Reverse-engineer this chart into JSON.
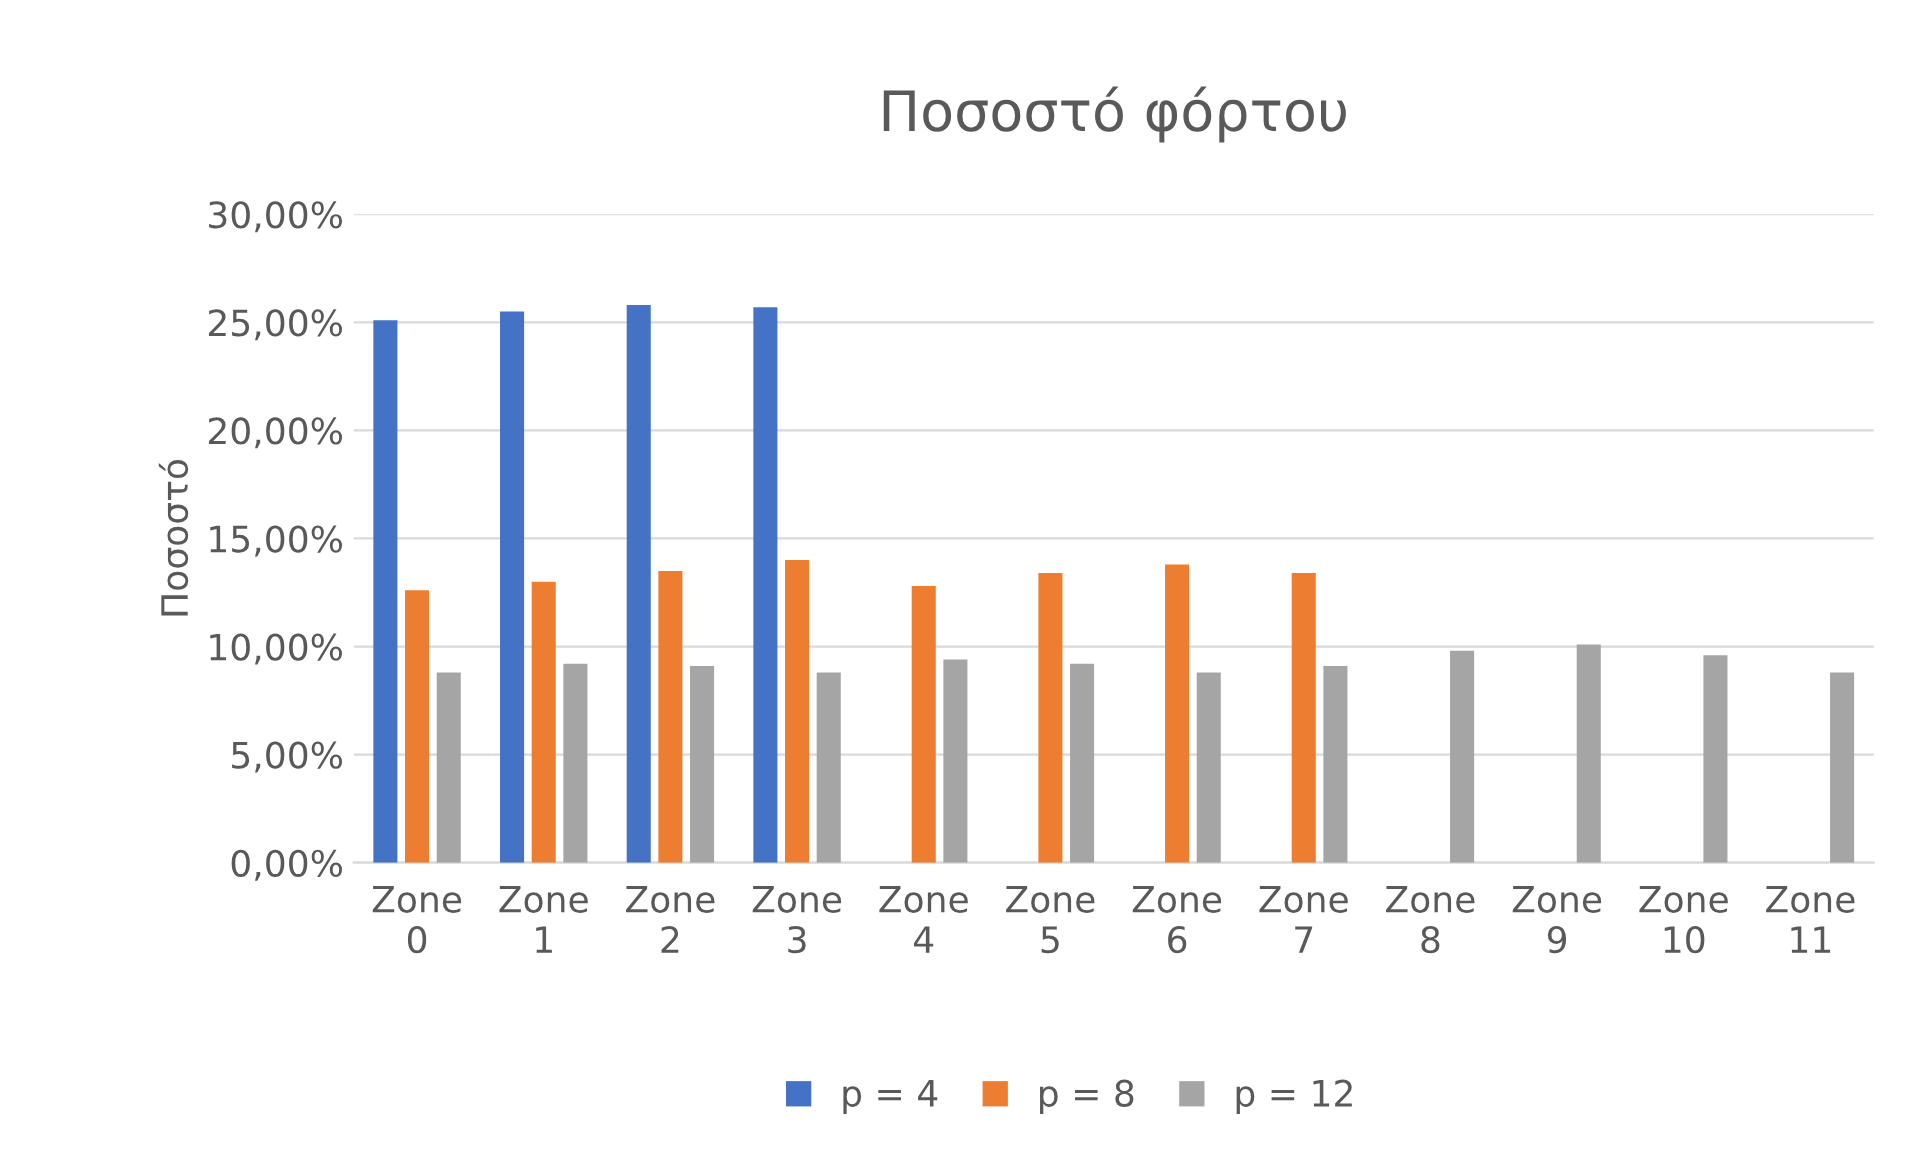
{
  "chart_data": {
    "type": "bar",
    "title": "Ποσοστό φόρτου",
    "ylabel": "Ποσοστό",
    "categories": [
      "Zone 0",
      "Zone 1",
      "Zone 2",
      "Zone 3",
      "Zone 4",
      "Zone 5",
      "Zone 6",
      "Zone 7",
      "Zone 8",
      "Zone 9",
      "Zone 10",
      "Zone 11"
    ],
    "series": [
      {
        "name": "p = 4",
        "color": "#4472c4",
        "values": [
          25.1,
          25.5,
          25.8,
          25.7,
          null,
          null,
          null,
          null,
          null,
          null,
          null,
          null
        ]
      },
      {
        "name": "p = 8",
        "color": "#ed7d31",
        "values": [
          12.6,
          13.0,
          13.5,
          14.0,
          12.8,
          13.4,
          13.8,
          13.4,
          null,
          null,
          null,
          null
        ]
      },
      {
        "name": "p = 12",
        "color": "#a5a5a5",
        "values": [
          8.8,
          9.2,
          9.1,
          8.8,
          9.4,
          9.2,
          8.8,
          9.1,
          9.8,
          10.1,
          9.6,
          8.8
        ]
      }
    ],
    "ylim": [
      0,
      30
    ],
    "yticks": [
      {
        "value": 0,
        "label": "0,00%"
      },
      {
        "value": 5,
        "label": "5,00%"
      },
      {
        "value": 10,
        "label": "10,00%"
      },
      {
        "value": 15,
        "label": "15,00%"
      },
      {
        "value": 20,
        "label": "20,00%"
      },
      {
        "value": 25,
        "label": "25,00%"
      },
      {
        "value": 30,
        "label": "30,00%"
      }
    ],
    "grid": "y",
    "legend": "bottom"
  }
}
